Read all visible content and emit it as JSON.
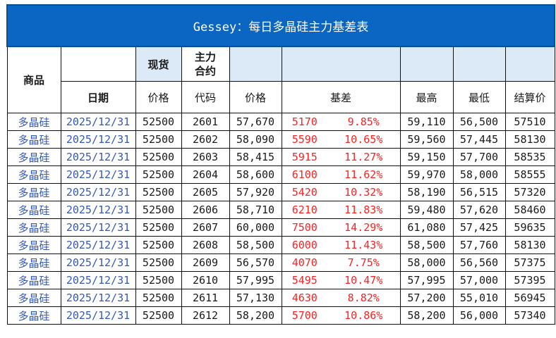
{
  "title": "Gessey：每日多晶硅主力基差表",
  "headers": {
    "product": "商品",
    "date": "日期",
    "spot_top": "现货",
    "spot_price": "价格",
    "main_top": "主力合约",
    "main_code": "代码",
    "futures_price": "价格",
    "basis": "基差",
    "high": "最高",
    "low": "最低",
    "settle": "结算价"
  },
  "rows": [
    {
      "product": "多晶硅",
      "date": "2025/12/31",
      "spot": "52500",
      "code": "2601",
      "price": "57,670",
      "basis": "5170",
      "pct": "9.85%",
      "high": "59,110",
      "low": "56,500",
      "settle": "57510"
    },
    {
      "product": "多晶硅",
      "date": "2025/12/31",
      "spot": "52500",
      "code": "2602",
      "price": "58,090",
      "basis": "5590",
      "pct": "10.65%",
      "high": "59,560",
      "low": "57,445",
      "settle": "58130"
    },
    {
      "product": "多晶硅",
      "date": "2025/12/31",
      "spot": "52500",
      "code": "2603",
      "price": "58,415",
      "basis": "5915",
      "pct": "11.27%",
      "high": "59,150",
      "low": "57,700",
      "settle": "58535"
    },
    {
      "product": "多晶硅",
      "date": "2025/12/31",
      "spot": "52500",
      "code": "2604",
      "price": "58,600",
      "basis": "6100",
      "pct": "11.62%",
      "high": "59,970",
      "low": "58,000",
      "settle": "58555"
    },
    {
      "product": "多晶硅",
      "date": "2025/12/31",
      "spot": "52500",
      "code": "2605",
      "price": "57,920",
      "basis": "5420",
      "pct": "10.32%",
      "high": "58,190",
      "low": "56,515",
      "settle": "57320"
    },
    {
      "product": "多晶硅",
      "date": "2025/12/31",
      "spot": "52500",
      "code": "2606",
      "price": "58,710",
      "basis": "6210",
      "pct": "11.83%",
      "high": "59,480",
      "low": "57,620",
      "settle": "58460"
    },
    {
      "product": "多晶硅",
      "date": "2025/12/31",
      "spot": "52500",
      "code": "2607",
      "price": "60,000",
      "basis": "7500",
      "pct": "14.29%",
      "high": "61,080",
      "low": "57,425",
      "settle": "59635"
    },
    {
      "product": "多晶硅",
      "date": "2025/12/31",
      "spot": "52500",
      "code": "2608",
      "price": "58,500",
      "basis": "6000",
      "pct": "11.43%",
      "high": "58,500",
      "low": "57,760",
      "settle": "58130"
    },
    {
      "product": "多晶硅",
      "date": "2025/12/31",
      "spot": "52500",
      "code": "2609",
      "price": "56,570",
      "basis": "4070",
      "pct": "7.75%",
      "high": "58,000",
      "low": "56,560",
      "settle": "57375"
    },
    {
      "product": "多晶硅",
      "date": "2025/12/31",
      "spot": "52500",
      "code": "2610",
      "price": "57,995",
      "basis": "5495",
      "pct": "10.47%",
      "high": "57,995",
      "low": "57,000",
      "settle": "57395"
    },
    {
      "product": "多晶硅",
      "date": "2025/12/31",
      "spot": "52500",
      "code": "2611",
      "price": "57,130",
      "basis": "4630",
      "pct": "8.82%",
      "high": "57,200",
      "low": "55,010",
      "settle": "56945"
    },
    {
      "product": "多晶硅",
      "date": "2025/12/31",
      "spot": "52500",
      "code": "2612",
      "price": "58,200",
      "basis": "5700",
      "pct": "10.86%",
      "high": "58,200",
      "low": "56,000",
      "settle": "57340"
    }
  ],
  "colors": {
    "title_bg": "#0a66c2",
    "title_text": "#ffffff",
    "header_fill": "#dce9f7",
    "link_blue": "#3559b8",
    "basis_red": "#ff2020"
  }
}
